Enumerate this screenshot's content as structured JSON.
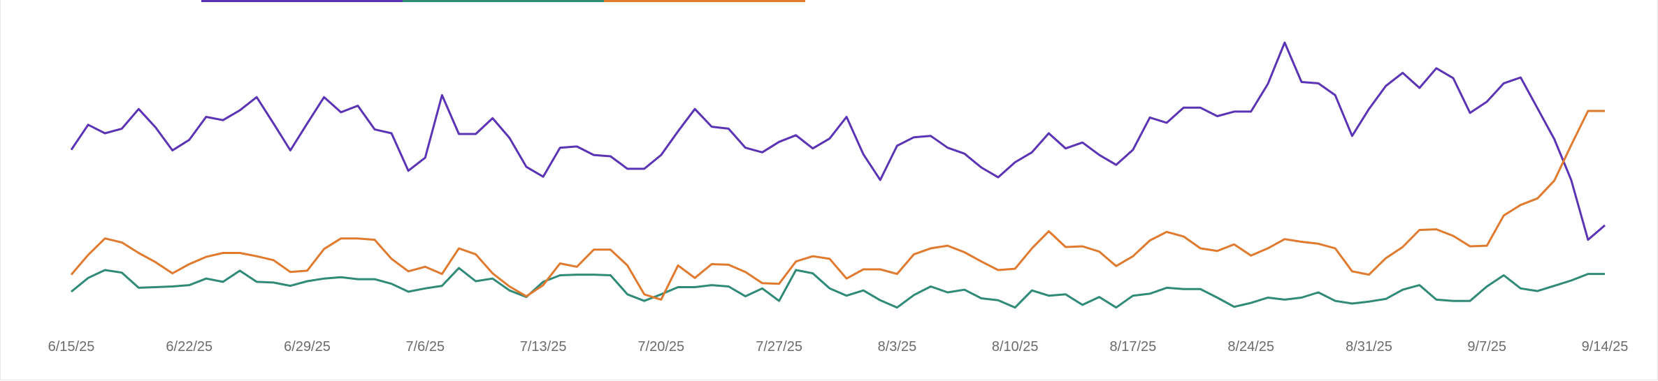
{
  "chart_data": {
    "type": "line",
    "x": [
      "6/15/25",
      "6/16/25",
      "6/17/25",
      "6/18/25",
      "6/19/25",
      "6/20/25",
      "6/21/25",
      "6/22/25",
      "6/23/25",
      "6/24/25",
      "6/25/25",
      "6/26/25",
      "6/27/25",
      "6/28/25",
      "6/29/25",
      "6/30/25",
      "7/1/25",
      "7/2/25",
      "7/3/25",
      "7/4/25",
      "7/5/25",
      "7/6/25",
      "7/7/25",
      "7/8/25",
      "7/9/25",
      "7/10/25",
      "7/11/25",
      "7/12/25",
      "7/13/25",
      "7/14/25",
      "7/15/25",
      "7/16/25",
      "7/17/25",
      "7/18/25",
      "7/19/25",
      "7/20/25",
      "7/21/25",
      "7/22/25",
      "7/23/25",
      "7/24/25",
      "7/25/25",
      "7/26/25",
      "7/27/25",
      "7/28/25",
      "7/29/25",
      "7/30/25",
      "7/31/25",
      "8/1/25",
      "8/2/25",
      "8/3/25",
      "8/4/25",
      "8/5/25",
      "8/6/25",
      "8/7/25",
      "8/8/25",
      "8/9/25",
      "8/10/25",
      "8/11/25",
      "8/12/25",
      "8/13/25",
      "8/14/25",
      "8/15/25",
      "8/16/25",
      "8/17/25",
      "8/18/25",
      "8/19/25",
      "8/20/25",
      "8/21/25",
      "8/22/25",
      "8/23/25",
      "8/24/25",
      "8/25/25",
      "8/26/25",
      "8/27/25",
      "8/28/25",
      "8/29/25",
      "8/30/25",
      "8/31/25",
      "9/1/25",
      "9/2/25",
      "9/3/25",
      "9/4/25",
      "9/5/25",
      "9/6/25",
      "9/7/25",
      "9/8/25",
      "9/9/25",
      "9/10/25",
      "9/11/25",
      "9/12/25",
      "9/13/25",
      "9/14/25"
    ],
    "tick_labels": [
      "6/15/25",
      "6/22/25",
      "6/29/25",
      "7/6/25",
      "7/13/25",
      "7/20/25",
      "7/27/25",
      "8/3/25",
      "8/10/25",
      "8/17/25",
      "8/24/25",
      "8/31/25",
      "9/7/25",
      "9/14/25"
    ],
    "tick_indices": [
      0,
      7,
      14,
      21,
      28,
      35,
      42,
      49,
      56,
      63,
      70,
      77,
      84,
      91
    ],
    "ylim": [
      0,
      100
    ],
    "grid": false,
    "legend": "top",
    "colors": [
      "#5b33b5",
      "#2f8a78",
      "#e07a2e"
    ],
    "series": [
      {
        "values": [
          60.6,
          68.2,
          65.6,
          67.0,
          73.0,
          67.4,
          60.4,
          63.6,
          70.6,
          69.6,
          72.6,
          76.6,
          68.6,
          60.4,
          68.6,
          76.6,
          72.0,
          74.0,
          66.8,
          65.6,
          54.2,
          58.2,
          77.2,
          65.4,
          65.4,
          70.2,
          64.2,
          55.4,
          52.4,
          61.2,
          61.6,
          59.0,
          58.6,
          54.8,
          54.8,
          59.0,
          66.2,
          73.0,
          67.6,
          67.0,
          61.2,
          59.8,
          63.0,
          65.0,
          61.0,
          64.0,
          70.6,
          59.2,
          51.4,
          61.8,
          64.4,
          64.8,
          61.2,
          59.4,
          55.2,
          52.2,
          56.8,
          59.8,
          65.6,
          61.0,
          62.8,
          59.0,
          56.0,
          60.6,
          70.4,
          68.8,
          73.4,
          73.4,
          70.8,
          72.2,
          72.2,
          80.6,
          93.2,
          81.2,
          80.8,
          77.2,
          64.8,
          73.0,
          80.0,
          84.0,
          79.4,
          85.4,
          82.4,
          71.8,
          75.2,
          80.8,
          82.6,
          73.2,
          63.8,
          51.4,
          33.2,
          37.6
        ]
      },
      {
        "values": [
          17.4,
          21.6,
          24.0,
          23.2,
          18.6,
          18.8,
          19.0,
          19.4,
          21.4,
          20.4,
          23.8,
          20.4,
          20.2,
          19.2,
          20.6,
          21.4,
          21.8,
          21.2,
          21.2,
          19.8,
          17.4,
          18.4,
          19.2,
          24.6,
          20.6,
          21.4,
          17.8,
          15.8,
          20.4,
          22.4,
          22.6,
          22.6,
          22.4,
          16.6,
          14.6,
          16.6,
          18.8,
          18.8,
          19.4,
          19.0,
          16.0,
          18.4,
          14.6,
          24.0,
          23.0,
          18.4,
          16.2,
          17.8,
          14.8,
          12.6,
          16.4,
          19.0,
          17.2,
          18.0,
          15.4,
          14.8,
          12.6,
          17.8,
          16.2,
          16.6,
          13.4,
          15.8,
          12.6,
          16.2,
          16.8,
          18.6,
          18.2,
          18.2,
          15.6,
          12.8,
          14.0,
          15.6,
          15.0,
          15.6,
          17.2,
          14.6,
          13.8,
          14.4,
          15.2,
          18.0,
          19.4,
          15.0,
          14.6,
          14.6,
          19.0,
          22.4,
          18.4,
          17.6,
          19.2,
          20.8,
          22.8,
          22.8
        ]
      },
      {
        "values": [
          22.6,
          28.6,
          33.6,
          32.4,
          29.2,
          26.4,
          23.0,
          25.8,
          28.0,
          29.2,
          29.2,
          28.2,
          27.0,
          23.4,
          23.8,
          30.4,
          33.6,
          33.6,
          33.2,
          27.4,
          23.6,
          25.0,
          22.8,
          30.6,
          28.8,
          23.0,
          19.0,
          16.0,
          19.4,
          26.0,
          25.0,
          30.2,
          30.2,
          25.4,
          16.6,
          15.0,
          25.4,
          21.6,
          25.8,
          25.6,
          23.4,
          20.0,
          19.8,
          26.6,
          28.2,
          27.4,
          21.4,
          24.2,
          24.2,
          22.8,
          28.8,
          30.6,
          31.4,
          29.4,
          26.6,
          24.0,
          24.4,
          30.6,
          35.8,
          31.0,
          31.2,
          29.6,
          25.2,
          28.2,
          33.0,
          35.6,
          34.2,
          30.6,
          29.8,
          31.8,
          28.4,
          30.6,
          33.4,
          32.6,
          32.0,
          30.6,
          23.6,
          22.6,
          27.6,
          31.0,
          36.2,
          36.4,
          34.4,
          31.2,
          31.4,
          40.6,
          43.8,
          45.8,
          51.2,
          62.0,
          72.4,
          72.4
        ]
      }
    ]
  }
}
